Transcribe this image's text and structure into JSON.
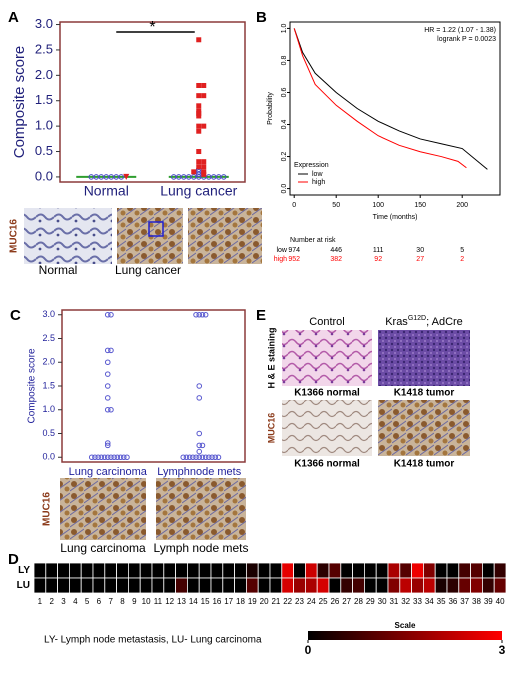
{
  "panels": {
    "a": "A",
    "b": "B",
    "c": "C",
    "d": "D",
    "e": "E"
  },
  "images": {
    "a_stain": "MUC16",
    "a_normal": "Normal",
    "a_cancer": "Lung cancer",
    "c_stain": "MUC16",
    "c_lc": "Lung carcinoma",
    "c_ln": "Lymph node mets",
    "e_control": "Control",
    "e_kras": "Kras",
    "e_kras_sup": "G12D",
    "e_kras_rest": "; AdCre",
    "e_he": "H & E staining",
    "e_muc": "MUC16",
    "e_n1": "K1366  normal",
    "e_t1": "K1418  tumor",
    "e_n2": "K1366  normal",
    "e_t2": "K1418  tumor"
  },
  "chart_data": [
    {
      "type": "dotplot",
      "y_label": "Composite score",
      "annotation": "*",
      "categories": [
        "Normal",
        "Lung cancer"
      ],
      "ylim": [
        -0.1,
        3.05
      ],
      "yticks": [
        {
          "value": 0,
          "label": "0.0"
        },
        0.5,
        {
          "value": 1,
          "label": "1.0"
        },
        1.5,
        {
          "value": 2,
          "label": "2.0"
        },
        2.5,
        {
          "value": 3,
          "label": "3.0"
        }
      ],
      "medians": [
        0,
        0
      ],
      "median_color": "#2e9e2e",
      "groups": [
        {
          "category": 0,
          "marker": "circle",
          "color": "#4a4ac8",
          "values": [
            0,
            0,
            0,
            0,
            0,
            0,
            0
          ]
        },
        {
          "category": 0,
          "marker": "triangle",
          "color": "#e02020",
          "values": [
            0
          ]
        },
        {
          "category": 1,
          "marker": "circle",
          "color": "#4a4ac8",
          "values": [
            0,
            0,
            0,
            0,
            0,
            0,
            0,
            0,
            0,
            0,
            0,
            0.05,
            0.1,
            0.15
          ]
        },
        {
          "category": 1,
          "marker": "square",
          "color": "#e02020",
          "values": [
            2.7,
            1.8,
            1.8,
            1.6,
            1.6,
            1.4,
            1.3,
            1.25,
            1.2,
            1.0,
            1.0,
            0.9,
            0.5,
            0.3,
            0.3,
            0.2,
            0.2,
            0.1,
            0.1,
            0.05
          ]
        }
      ]
    },
    {
      "type": "survival",
      "y_label": "Probability",
      "x_label": "Time (months)",
      "annotations": [
        "HR = 1.22 (1.07 - 1.38)",
        "logrank P = 0.0023"
      ],
      "xlim": [
        -5,
        245
      ],
      "xticks": [
        0,
        50,
        100,
        150,
        200
      ],
      "ylim": [
        -0.04,
        1.04
      ],
      "yticks": [
        {
          "value": 0,
          "label": "0.0"
        },
        0.2,
        0.4,
        0.6,
        0.8,
        {
          "value": 1,
          "label": "1.0"
        }
      ],
      "legend_title": "Expression",
      "legend": "bottom-left",
      "series": [
        {
          "name": "low",
          "color": "#000000",
          "x": [
            0,
            10,
            25,
            50,
            75,
            100,
            125,
            150,
            175,
            200,
            230
          ],
          "y": [
            1,
            0.85,
            0.72,
            0.6,
            0.5,
            0.42,
            0.36,
            0.31,
            0.28,
            0.25,
            0.12
          ]
        },
        {
          "name": "high",
          "color": "#ff0000",
          "x": [
            0,
            10,
            25,
            50,
            75,
            100,
            125,
            150,
            175,
            195,
            205
          ],
          "y": [
            1,
            0.83,
            0.65,
            0.52,
            0.42,
            0.33,
            0.27,
            0.23,
            0.2,
            0.17,
            0.13
          ]
        }
      ],
      "risk_table": {
        "title": "Number at risk",
        "rows": [
          {
            "name": "low",
            "values": [
              974,
              446,
              111,
              30,
              5
            ]
          },
          {
            "name": "high",
            "values": [
              952,
              382,
              92,
              27,
              2
            ]
          }
        ]
      }
    },
    {
      "type": "dotplot",
      "y_label": "Composite score",
      "categories": [
        "Lung carcinoma",
        "Lymphnode mets"
      ],
      "ylim": [
        -0.1,
        3.1
      ],
      "yticks": [
        {
          "value": 0,
          "label": "0.0"
        },
        0.5,
        {
          "value": 1,
          "label": "1.0"
        },
        1.5,
        {
          "value": 2,
          "label": "2.0"
        },
        2.5,
        {
          "value": 3,
          "label": "3.0"
        }
      ],
      "groups": [
        {
          "category": 0,
          "marker": "circle",
          "color": "#5a5ad0",
          "values": [
            3,
            3,
            2.25,
            2.25,
            2,
            1.75,
            1.5,
            1.25,
            1,
            1,
            0.3,
            0.25,
            0,
            0,
            0,
            0,
            0,
            0,
            0,
            0,
            0,
            0,
            0,
            0
          ]
        },
        {
          "category": 1,
          "marker": "circle",
          "color": "#5a5ad0",
          "values": [
            3,
            3,
            3,
            3,
            1.5,
            1.25,
            0.5,
            0.25,
            0.25,
            0.12,
            0,
            0,
            0,
            0,
            0,
            0,
            0,
            0,
            0,
            0,
            0,
            0
          ]
        }
      ]
    },
    {
      "type": "heatmap",
      "rows": [
        "LY",
        "LU"
      ],
      "categories": [
        1,
        2,
        3,
        4,
        5,
        6,
        7,
        8,
        9,
        10,
        11,
        12,
        13,
        14,
        15,
        16,
        17,
        18,
        19,
        20,
        21,
        22,
        23,
        24,
        25,
        26,
        27,
        28,
        29,
        30,
        31,
        32,
        33,
        34,
        35,
        36,
        37,
        38,
        39,
        40
      ],
      "values": [
        [
          0,
          0,
          0,
          0,
          0,
          0,
          0,
          0,
          0,
          0,
          0,
          0,
          0,
          0,
          0,
          0,
          0,
          0,
          0.3,
          0,
          0,
          2.7,
          0,
          2.4,
          0.5,
          1.0,
          0,
          0,
          0,
          0,
          2.0,
          1.0,
          2.8,
          1.5,
          0,
          0,
          0.8,
          1.0,
          0,
          0.6
        ],
        [
          0,
          0,
          0,
          0,
          0,
          0,
          0,
          0,
          0,
          0,
          0,
          0,
          0.8,
          0,
          0,
          0,
          0,
          0,
          1.0,
          0,
          0,
          2.5,
          1.8,
          2.0,
          2.5,
          0,
          0.6,
          0.8,
          0,
          0,
          1.5,
          2.2,
          1.8,
          2.2,
          0.3,
          0.5,
          1.2,
          1.5,
          0.6,
          1.2
        ]
      ],
      "colors": [
        "#000000",
        "#ff0000"
      ],
      "scale_title": "Scale",
      "scale_lim": [
        0,
        3
      ],
      "scale_ticks": [
        0,
        3
      ],
      "caption": "LY- Lymph node metastasis, LU- Lung carcinoma"
    }
  ]
}
